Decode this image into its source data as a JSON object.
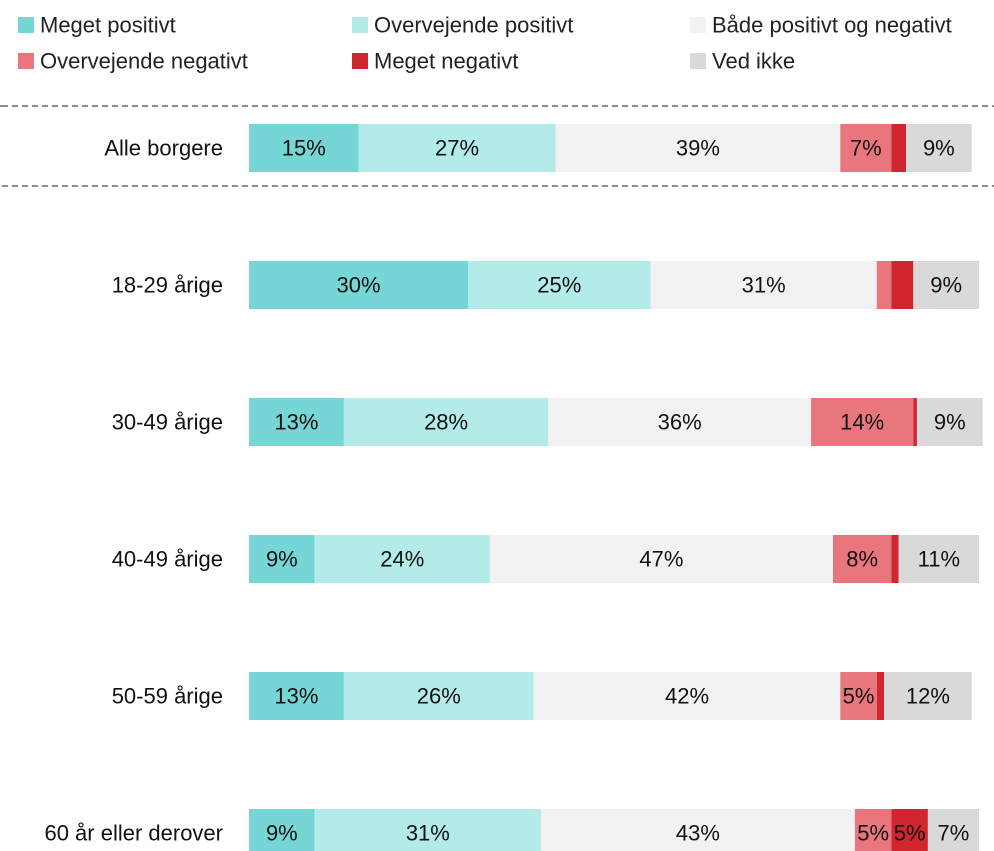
{
  "chart_data": {
    "type": "stacked_bar_horizontal",
    "legend": "top",
    "xlim": [
      0,
      100
    ],
    "categories": [
      "Alle borgere",
      "18-29 årige",
      "30-49 årige",
      "40-49 årige",
      "50-59 årige",
      "60 år eller derover"
    ],
    "series": [
      {
        "name": "Meget positivt",
        "color": "#76d6d6",
        "values": [
          15,
          30,
          13,
          9,
          13,
          9
        ],
        "value_labels": [
          "15%",
          "30%",
          "13%",
          "9%",
          "13%",
          "9%"
        ]
      },
      {
        "name": "Overvejende positivt",
        "color": "#b3ebe8",
        "values": [
          27,
          25,
          28,
          24,
          26,
          31
        ],
        "value_labels": [
          "27%",
          "25%",
          "28%",
          "24%",
          "26%",
          "31%"
        ]
      },
      {
        "name": "Både positivt og negativt",
        "color": "#f2f2f2",
        "values": [
          39,
          31,
          36,
          47,
          42,
          43
        ],
        "value_labels": [
          "39%",
          "31%",
          "36%",
          "47%",
          "42%",
          "43%"
        ]
      },
      {
        "name": "Overvejende negativt",
        "color": "#e8767c",
        "values": [
          7,
          2,
          14,
          8,
          5,
          5
        ],
        "value_labels": [
          "7%",
          null,
          "14%",
          "8%",
          "5%",
          "5%"
        ]
      },
      {
        "name": "Meget negativt",
        "color": "#d0262f",
        "values": [
          2,
          3,
          0.5,
          1,
          1,
          5
        ],
        "value_labels": [
          null,
          null,
          null,
          null,
          null,
          "5%"
        ]
      },
      {
        "name": "Ved ikke",
        "color": "#d9d9d9",
        "values": [
          9,
          9,
          9,
          11,
          12,
          7
        ],
        "value_labels": [
          "9%",
          "9%",
          "9%",
          "11%",
          "12%",
          "7%"
        ]
      }
    ]
  }
}
